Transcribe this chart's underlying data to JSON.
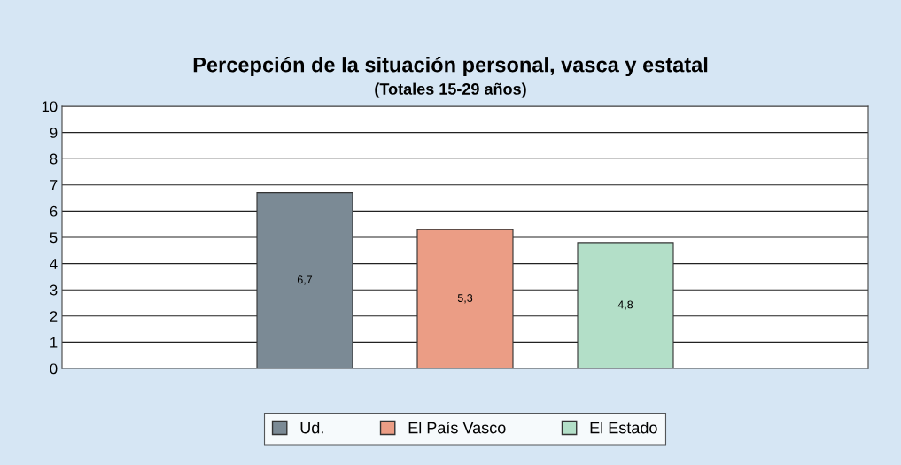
{
  "chart_data": {
    "type": "bar",
    "title": "Percepción de la situación personal, vasca y estatal",
    "subtitle": "(Totales 15-29 años)",
    "categories": [
      null
    ],
    "series": [
      {
        "name": "Ud.",
        "color": "#7b8a95",
        "values": [
          6.7
        ],
        "value_labels": [
          "6,7"
        ]
      },
      {
        "name": "El País Vasco",
        "color": "#eb9d85",
        "values": [
          5.3
        ],
        "value_labels": [
          "5,3"
        ]
      },
      {
        "name": "El Estado",
        "color": "#b3dfc8",
        "values": [
          4.8
        ],
        "value_labels": [
          "4,8"
        ]
      }
    ],
    "ylim": [
      0,
      10
    ],
    "yticks": [
      0,
      1,
      2,
      3,
      4,
      5,
      6,
      7,
      8,
      9,
      10
    ],
    "grid": "y",
    "legend": "bottom",
    "tick_labels": "y"
  }
}
